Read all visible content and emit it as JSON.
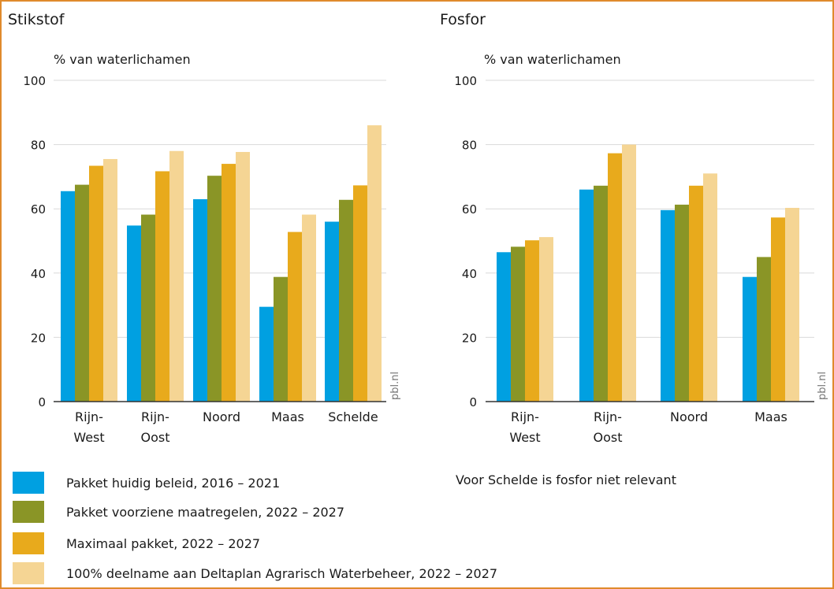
{
  "charts": [
    {
      "title": "Stikstof",
      "ylabel": "% van waterlichamen",
      "source": "pbl.nl"
    },
    {
      "title": "Fosfor",
      "ylabel": "% van waterlichamen",
      "source": "pbl.nl"
    }
  ],
  "note": "Voor Schelde is fosfor niet relevant",
  "legend": [
    {
      "label": "Pakket huidig beleid, 2016 – 2021",
      "color": "#00a0e1"
    },
    {
      "label": "Pakket voorziene maatregelen, 2022 – 2027",
      "color": "#8a9526"
    },
    {
      "label": "Maximaal pakket, 2022 – 2027",
      "color": "#e8aa1c"
    },
    {
      "label": "100% deelname aan Deltaplan Agrarisch Waterbeheer, 2022 – 2027",
      "color": "#f5d594"
    }
  ],
  "chart_data": [
    {
      "type": "bar",
      "title": "Stikstof",
      "ylabel": "% van waterlichamen",
      "ylim": [
        0,
        100
      ],
      "yticks": [
        "0",
        "20",
        "40",
        "60",
        "80",
        "100"
      ],
      "categories": [
        [
          "Rijn-",
          "West"
        ],
        [
          "Rijn-",
          "Oost"
        ],
        [
          "Noord"
        ],
        [
          "Maas"
        ],
        [
          "Schelde"
        ]
      ],
      "series": [
        {
          "name": "Pakket huidig beleid, 2016 – 2021",
          "values": [
            65.5,
            54.8,
            63,
            29.5,
            56
          ]
        },
        {
          "name": "Pakket voorziene maatregelen, 2022 – 2027",
          "values": [
            67.5,
            58.2,
            70.3,
            38.8,
            62.8
          ]
        },
        {
          "name": "Maximaal pakket, 2022 – 2027",
          "values": [
            73.4,
            71.7,
            74,
            52.8,
            67.3
          ]
        },
        {
          "name": "100% deelname aan Deltaplan Agrarisch Waterbeheer, 2022 – 2027",
          "values": [
            75.5,
            78,
            77.7,
            58.2,
            86
          ]
        }
      ],
      "grid": true
    },
    {
      "type": "bar",
      "title": "Fosfor",
      "ylabel": "% van waterlichamen",
      "ylim": [
        0,
        100
      ],
      "yticks": [
        "0",
        "20",
        "40",
        "60",
        "80",
        "100"
      ],
      "categories": [
        [
          "Rijn-",
          "West"
        ],
        [
          "Rijn-",
          "Oost"
        ],
        [
          "Noord"
        ],
        [
          "Maas"
        ]
      ],
      "series": [
        {
          "name": "Pakket huidig beleid, 2016 – 2021",
          "values": [
            46.5,
            66,
            59.6,
            38.8
          ]
        },
        {
          "name": "Pakket voorziene maatregelen, 2022 – 2027",
          "values": [
            48.2,
            67.2,
            61.3,
            45
          ]
        },
        {
          "name": "Maximaal pakket, 2022 – 2027",
          "values": [
            50.2,
            77.3,
            67.2,
            57.3
          ]
        },
        {
          "name": "100% deelname aan Deltaplan Agrarisch Waterbeheer, 2022 – 2027",
          "values": [
            51.2,
            80,
            71,
            60.3
          ]
        }
      ],
      "grid": true
    }
  ]
}
